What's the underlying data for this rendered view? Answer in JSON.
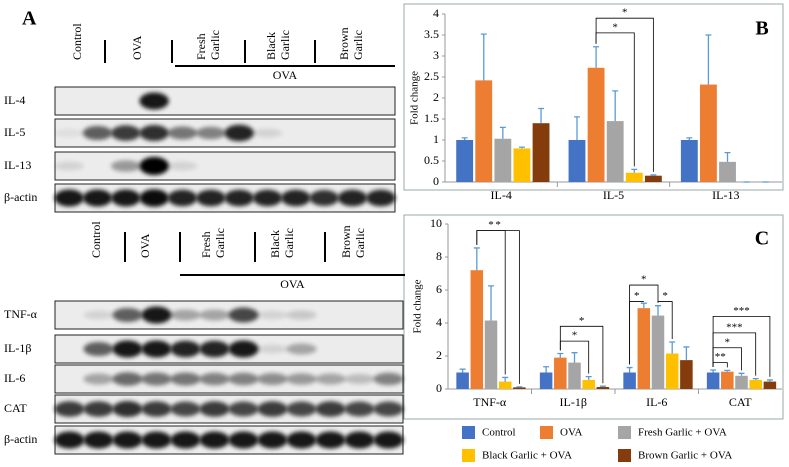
{
  "panel_a": {
    "label": "A",
    "top": {
      "lanes": [
        [
          "Control"
        ],
        [
          "OVA"
        ],
        [
          "Fresh",
          "Garlic"
        ],
        [
          "Black",
          "Garlic"
        ],
        [
          "Brown",
          "Garlic"
        ]
      ],
      "group": "OVA",
      "rows": [
        "IL-4",
        "IL-5",
        "IL-13",
        "β-actin"
      ]
    },
    "bottom": {
      "lanes": [
        [
          "Control"
        ],
        [
          "OVA"
        ],
        [
          "Fresh",
          "Garlic"
        ],
        [
          "Black",
          "Garlic"
        ],
        [
          "Brown",
          "Garlic"
        ]
      ],
      "group": "OVA",
      "rows": [
        "TNF-α",
        "IL-1β",
        "IL-6",
        "CAT",
        "β-actin"
      ]
    }
  },
  "chart_data": [
    {
      "type": "bar",
      "panel_label": "B",
      "y_label": "Fold change",
      "categories": [
        "IL-4",
        "IL-5",
        "IL-13"
      ],
      "ylim": [
        0,
        4
      ],
      "yticks": [
        0,
        0.5,
        1,
        1.5,
        2,
        2.5,
        3,
        3.5,
        4
      ],
      "series": [
        {
          "color": "#4472c4",
          "values": [
            1.0,
            1.0,
            1.0
          ],
          "errors": [
            0.05,
            0.55,
            0.05
          ]
        },
        {
          "color": "#ed7d31",
          "values": [
            2.42,
            2.72,
            2.32
          ],
          "errors": [
            1.1,
            0.5,
            1.18
          ]
        },
        {
          "color": "#a5a5a5",
          "values": [
            1.03,
            1.45,
            0.48
          ],
          "errors": [
            0.27,
            0.72,
            0.22
          ]
        },
        {
          "color": "#ffc000",
          "values": [
            0.8,
            0.22,
            0.0
          ],
          "errors": [
            0.03,
            0.08,
            0.0
          ]
        },
        {
          "color": "#843c0c",
          "values": [
            1.4,
            0.15,
            0.0
          ],
          "errors": [
            0.35,
            0.02,
            0.0
          ]
        }
      ],
      "annotations": [
        "*",
        "*"
      ]
    },
    {
      "type": "bar",
      "panel_label": "C",
      "y_label": "Fold change",
      "categories": [
        "TNF-α",
        "IL-1β",
        "IL-6",
        "CAT"
      ],
      "ylim": [
        0,
        10
      ],
      "yticks": [
        0,
        2,
        4,
        6,
        8,
        10
      ],
      "series": [
        {
          "name": "Control",
          "color": "#4472c4",
          "values": [
            1.0,
            1.0,
            1.0,
            1.0
          ],
          "errors": [
            0.2,
            0.35,
            0.3,
            0.15
          ]
        },
        {
          "name": "OVA",
          "color": "#ed7d31",
          "values": [
            7.2,
            1.9,
            4.9,
            1.05
          ],
          "errors": [
            1.35,
            0.25,
            0.3,
            0.08
          ]
        },
        {
          "name": "Fresh Garlic + OVA",
          "color": "#a5a5a5",
          "values": [
            4.15,
            1.6,
            4.45,
            0.8
          ],
          "errors": [
            2.1,
            0.6,
            0.6,
            0.15
          ]
        },
        {
          "name": "Black Garlic + OVA",
          "color": "#ffc000",
          "values": [
            0.45,
            0.55,
            2.15,
            0.55
          ],
          "errors": [
            0.25,
            0.2,
            0.7,
            0.08
          ]
        },
        {
          "name": "Brown Garlic + OVA",
          "color": "#843c0c",
          "values": [
            0.1,
            0.12,
            1.75,
            0.45
          ],
          "errors": [
            0.03,
            0.05,
            0.8,
            0.1
          ]
        }
      ],
      "annotations": [
        "*",
        "*",
        "*",
        "*",
        "*",
        "*",
        "*",
        "***",
        "***",
        "*",
        "**"
      ]
    }
  ]
}
